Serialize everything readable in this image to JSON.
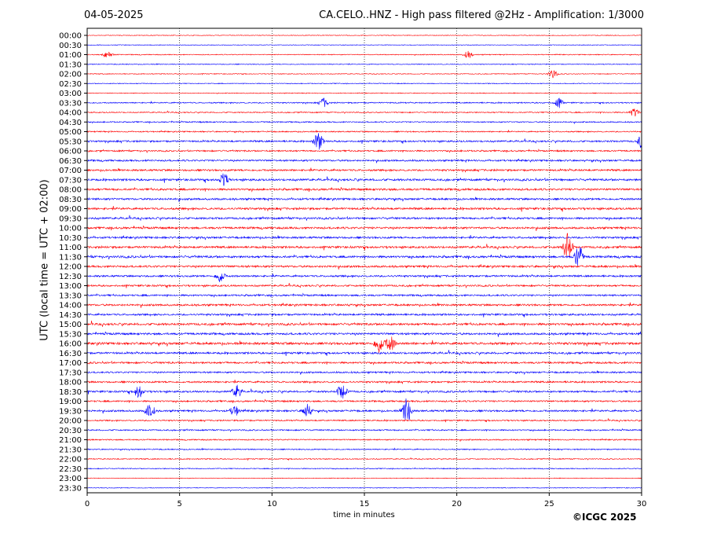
{
  "header": {
    "date": "04-05-2025",
    "title": "CA.CELO..HNZ - High pass filtered @2Hz - Amplification: 1/3000",
    "copyright": "©ICGC 2025"
  },
  "chart_data": {
    "type": "line",
    "title": "CA.CELO..HNZ - High pass filtered @2Hz - Amplification: 1/3000",
    "xlabel": "time in minutes",
    "ylabel": "UTC (local time = UTC + 02:00)",
    "xlim": [
      0,
      30
    ],
    "xticks": [
      "0",
      "5",
      "10",
      "15",
      "20",
      "25",
      "30"
    ],
    "xtick_values": [
      0,
      5,
      10,
      15,
      20,
      25,
      30
    ],
    "grid": "vertical dotted at each x tick",
    "trace_colors": [
      "#ff0000",
      "#0000ff"
    ],
    "row_labels": [
      "00:00",
      "00:30",
      "01:00",
      "01:30",
      "02:00",
      "02:30",
      "03:00",
      "03:30",
      "04:00",
      "04:30",
      "05:00",
      "05:30",
      "06:00",
      "06:30",
      "07:00",
      "07:30",
      "08:00",
      "08:30",
      "09:00",
      "09:30",
      "10:00",
      "10:30",
      "11:00",
      "11:30",
      "12:00",
      "12:30",
      "13:00",
      "13:30",
      "14:00",
      "14:30",
      "15:00",
      "15:30",
      "16:00",
      "16:30",
      "17:00",
      "17:30",
      "18:00",
      "18:30",
      "19:00",
      "19:30",
      "20:00",
      "20:30",
      "21:00",
      "21:30",
      "22:00",
      "22:30",
      "23:00",
      "23:30"
    ],
    "row_activity": [
      0.05,
      0.05,
      0.15,
      0.12,
      0.1,
      0.1,
      0.1,
      0.3,
      0.25,
      0.3,
      0.3,
      0.55,
      0.45,
      0.55,
      0.6,
      0.7,
      0.7,
      0.65,
      0.7,
      0.65,
      0.7,
      0.65,
      0.7,
      0.75,
      0.7,
      0.6,
      0.55,
      0.55,
      0.65,
      0.6,
      0.75,
      0.7,
      0.85,
      0.65,
      0.6,
      0.5,
      0.55,
      0.6,
      0.5,
      0.6,
      0.35,
      0.35,
      0.3,
      0.25,
      0.2,
      0.15,
      0.05,
      0.05
    ],
    "events": [
      {
        "row": 2,
        "minute": 1.1,
        "amp": 0.8
      },
      {
        "row": 2,
        "minute": 20.6,
        "amp": 0.8
      },
      {
        "row": 4,
        "minute": 25.2,
        "amp": 0.8
      },
      {
        "row": 7,
        "minute": 12.8,
        "amp": 1.0
      },
      {
        "row": 7,
        "minute": 25.5,
        "amp": 1.0
      },
      {
        "row": 8,
        "minute": 29.6,
        "amp": 1.0
      },
      {
        "row": 11,
        "minute": 12.5,
        "amp": 2.0
      },
      {
        "row": 11,
        "minute": 30.0,
        "amp": 1.5
      },
      {
        "row": 15,
        "minute": 7.4,
        "amp": 1.6
      },
      {
        "row": 22,
        "minute": 26.0,
        "amp": 3.0
      },
      {
        "row": 23,
        "minute": 26.6,
        "amp": 2.5
      },
      {
        "row": 25,
        "minute": 7.2,
        "amp": 1.4
      },
      {
        "row": 32,
        "minute": 15.8,
        "amp": 2.0
      },
      {
        "row": 32,
        "minute": 16.4,
        "amp": 1.8
      },
      {
        "row": 37,
        "minute": 2.8,
        "amp": 1.4
      },
      {
        "row": 37,
        "minute": 8.1,
        "amp": 1.4
      },
      {
        "row": 37,
        "minute": 13.8,
        "amp": 1.8
      },
      {
        "row": 39,
        "minute": 3.4,
        "amp": 1.6
      },
      {
        "row": 39,
        "minute": 17.3,
        "amp": 3.0
      },
      {
        "row": 39,
        "minute": 8.0,
        "amp": 1.2
      },
      {
        "row": 39,
        "minute": 11.9,
        "amp": 1.4
      }
    ]
  }
}
